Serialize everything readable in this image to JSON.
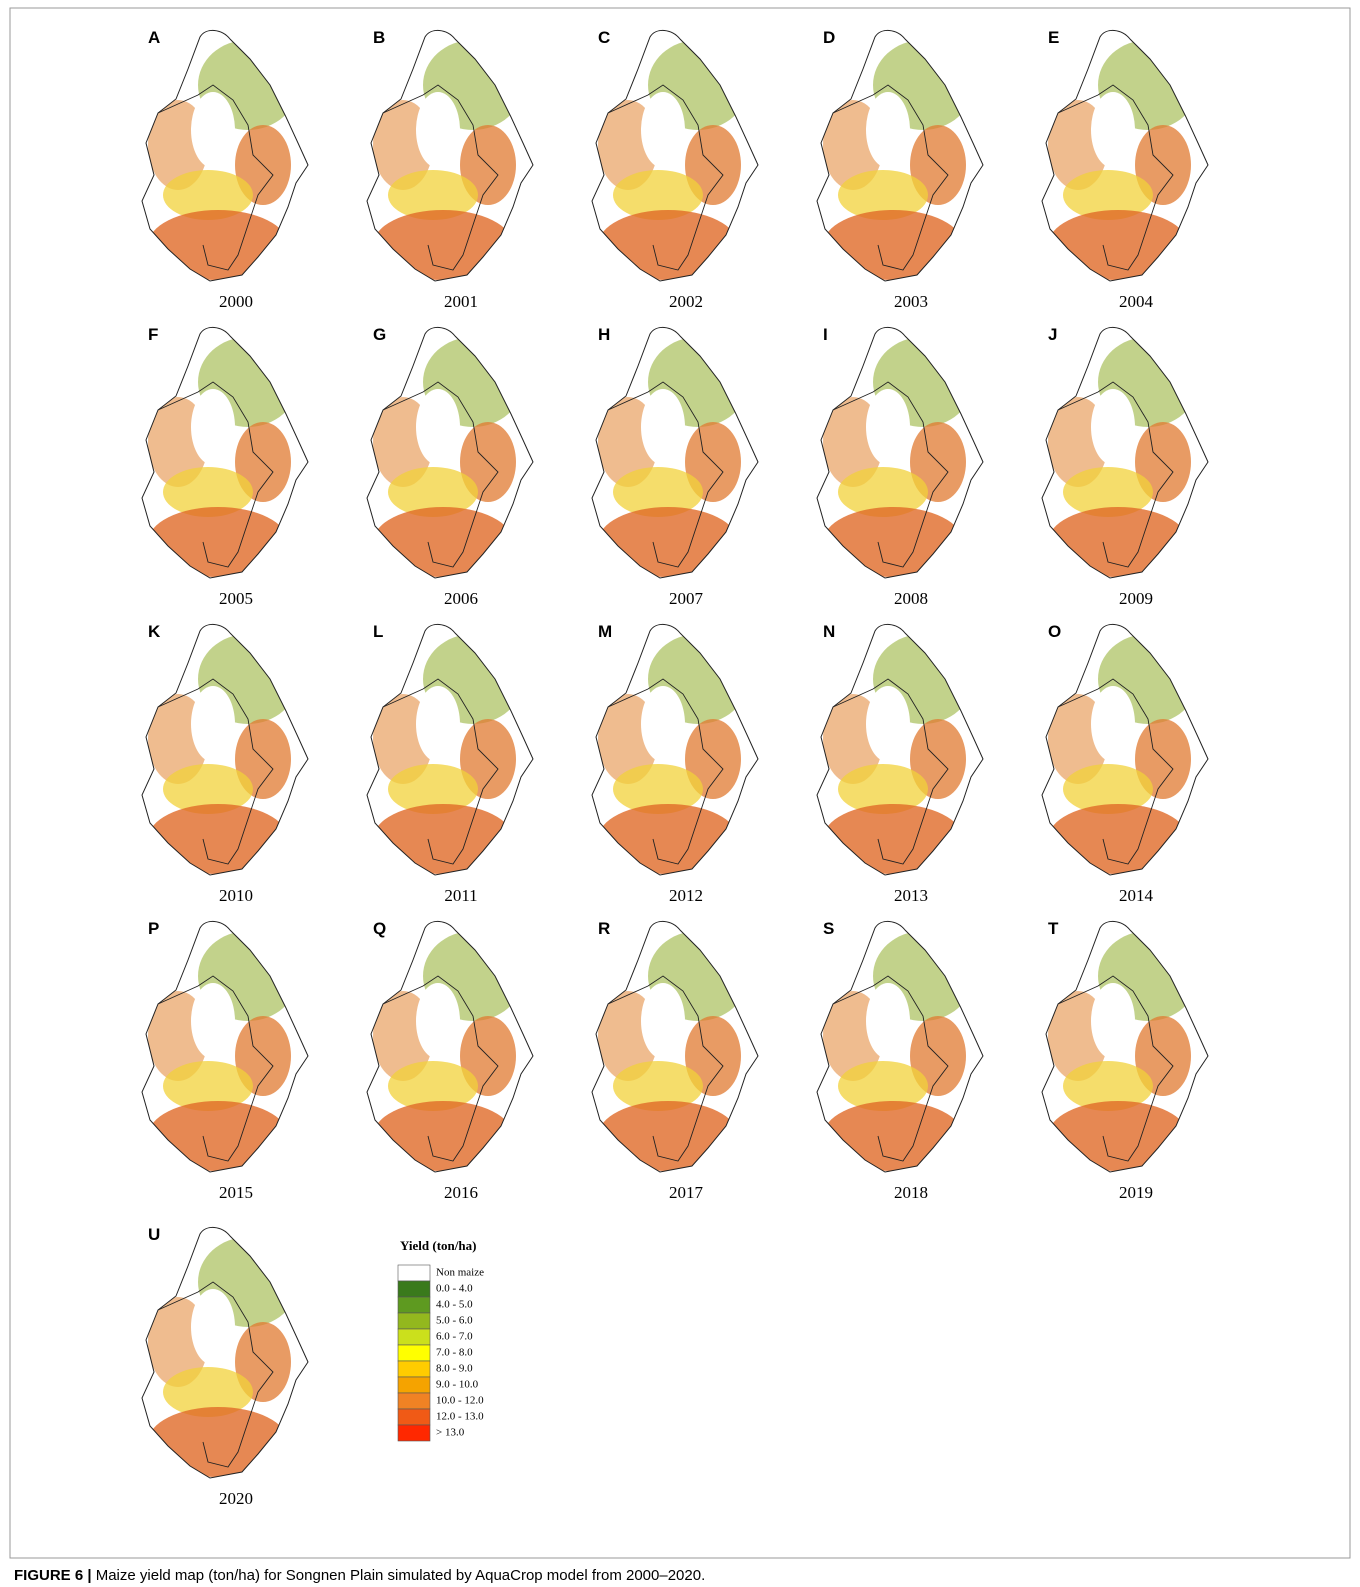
{
  "panels": [
    {
      "letter": "A",
      "year": "2000"
    },
    {
      "letter": "B",
      "year": "2001"
    },
    {
      "letter": "C",
      "year": "2002"
    },
    {
      "letter": "D",
      "year": "2003"
    },
    {
      "letter": "E",
      "year": "2004"
    },
    {
      "letter": "F",
      "year": "2005"
    },
    {
      "letter": "G",
      "year": "2006"
    },
    {
      "letter": "H",
      "year": "2007"
    },
    {
      "letter": "I",
      "year": "2008"
    },
    {
      "letter": "J",
      "year": "2009"
    },
    {
      "letter": "K",
      "year": "2010"
    },
    {
      "letter": "L",
      "year": "2011"
    },
    {
      "letter": "M",
      "year": "2012"
    },
    {
      "letter": "N",
      "year": "2013"
    },
    {
      "letter": "O",
      "year": "2014"
    },
    {
      "letter": "P",
      "year": "2015"
    },
    {
      "letter": "Q",
      "year": "2016"
    },
    {
      "letter": "R",
      "year": "2017"
    },
    {
      "letter": "S",
      "year": "2018"
    },
    {
      "letter": "T",
      "year": "2019"
    },
    {
      "letter": "U",
      "year": "2020"
    }
  ],
  "legend": {
    "title": "Yield (ton/ha)",
    "items": [
      {
        "label": "Non maize",
        "color": "#ffffff"
      },
      {
        "label": "0.0 - 4.0",
        "color": "#3a7a1c"
      },
      {
        "label": "4.0 - 5.0",
        "color": "#5e9a20"
      },
      {
        "label": "5.0 - 6.0",
        "color": "#93b81e"
      },
      {
        "label": "6.0 - 7.0",
        "color": "#cbe01c"
      },
      {
        "label": "7.0 - 8.0",
        "color": "#ffff00"
      },
      {
        "label": "8.0 - 9.0",
        "color": "#ffcc00"
      },
      {
        "label": "9.0 - 10.0",
        "color": "#f5a300"
      },
      {
        "label": "10.0 - 12.0",
        "color": "#f08224"
      },
      {
        "label": "12.0 - 13.0",
        "color": "#f05a16"
      },
      {
        "label": "> 13.0",
        "color": "#ff2800"
      }
    ]
  },
  "caption": {
    "label": "FIGURE 6 |",
    "text": "Maize yield map (ton/ha) for Songnen Plain simulated by AquaCrop model from 2000–2020."
  }
}
